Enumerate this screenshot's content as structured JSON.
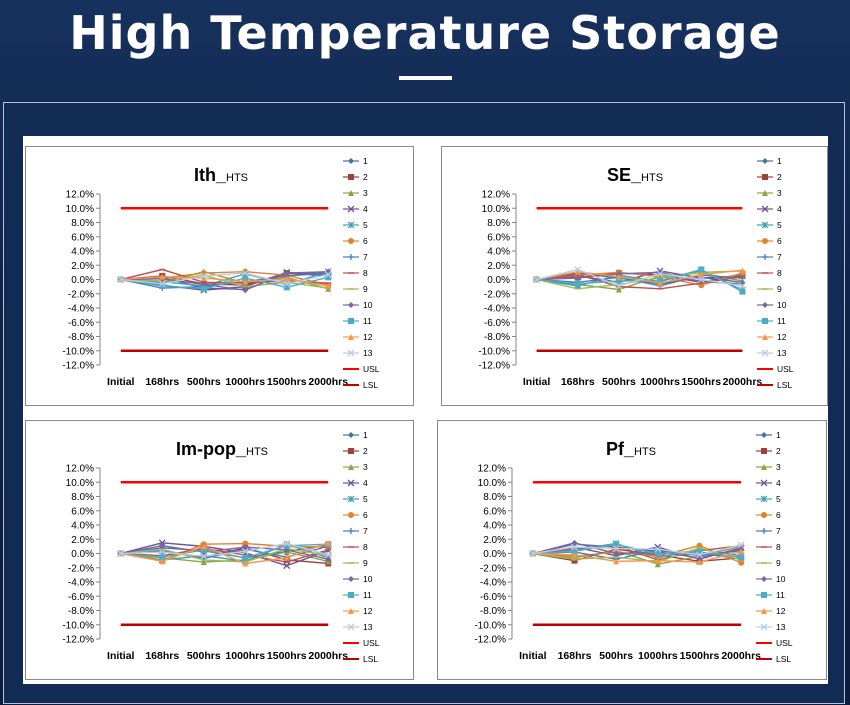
{
  "slide": {
    "title": "High Temperature Storage"
  },
  "legend": {
    "entries": [
      "1",
      "2",
      "3",
      "4",
      "5",
      "6",
      "7",
      "8",
      "9",
      "10",
      "11",
      "12",
      "13",
      "USL",
      "LSL"
    ],
    "colors": [
      "#4472a8",
      "#a0403b",
      "#8aa545",
      "#6d5396",
      "#3f9fb3",
      "#e0832f",
      "#4a7cbf",
      "#c0504d",
      "#9bbb59",
      "#8064a2",
      "#4bacc6",
      "#f79646",
      "#b8cce4",
      "#ff0000",
      "#c00000"
    ],
    "markers": [
      "diamond",
      "square",
      "triangle",
      "x",
      "star",
      "circle",
      "plus",
      "dash",
      "dash",
      "diamond",
      "square",
      "triangle",
      "x",
      "none",
      "none"
    ]
  },
  "chart_data": [
    {
      "type": "line",
      "title": "Ith_",
      "title_sub": "HTS",
      "categories": [
        "Initial",
        "168hrs",
        "500hrs",
        "1000hrs",
        "1500hrs",
        "2000hrs"
      ],
      "yticks": [
        "12.0%",
        "10.0%",
        "8.0%",
        "6.0%",
        "4.0%",
        "2.0%",
        "0.0%",
        "-2.0%",
        "-4.0%",
        "-6.0%",
        "-8.0%",
        "-10.0%",
        "-12.0%"
      ],
      "ylim": [
        -12,
        12
      ],
      "series": [
        {
          "name": "1",
          "values": [
            0,
            0.3,
            -1.2,
            -1.4,
            0.8,
            1.0
          ]
        },
        {
          "name": "2",
          "values": [
            0,
            0.5,
            -0.6,
            -0.8,
            0.9,
            0.5
          ]
        },
        {
          "name": "3",
          "values": [
            0,
            -0.5,
            1.1,
            -0.5,
            0.3,
            -1.3
          ]
        },
        {
          "name": "4",
          "values": [
            0,
            -0.8,
            -1.5,
            -1.0,
            1.0,
            0.6
          ]
        },
        {
          "name": "5",
          "values": [
            0,
            -0.3,
            -0.9,
            0.8,
            -0.7,
            1.1
          ]
        },
        {
          "name": "6",
          "values": [
            0,
            0.2,
            0.9,
            1.1,
            0.6,
            -0.8
          ]
        },
        {
          "name": "7",
          "values": [
            0,
            -1.2,
            -1.0,
            -0.3,
            0.5,
            0.9
          ]
        },
        {
          "name": "8",
          "values": [
            0,
            1.4,
            -0.4,
            -0.5,
            -0.2,
            -0.5
          ]
        },
        {
          "name": "9",
          "values": [
            0,
            -0.2,
            0.6,
            -1.0,
            -0.4,
            -1.2
          ]
        },
        {
          "name": "10",
          "values": [
            0,
            0.1,
            -0.7,
            -1.5,
            0.9,
            1.1
          ]
        },
        {
          "name": "11",
          "values": [
            0,
            -0.9,
            -1.3,
            0.2,
            -1.1,
            0.3
          ]
        },
        {
          "name": "12",
          "values": [
            0,
            0.4,
            0.2,
            -0.3,
            0.1,
            -0.9
          ]
        },
        {
          "name": "13",
          "values": [
            0,
            -0.6,
            0.5,
            0.9,
            -0.6,
            0.7
          ]
        },
        {
          "name": "USL",
          "values": [
            10,
            10,
            10,
            10,
            10,
            10
          ]
        },
        {
          "name": "LSL",
          "values": [
            -10,
            -10,
            -10,
            -10,
            -10,
            -10
          ]
        }
      ]
    },
    {
      "type": "line",
      "title": "SE_",
      "title_sub": "HTS",
      "categories": [
        "Initial",
        "168hrs",
        "500hrs",
        "1000hrs",
        "1500hrs",
        "2000hrs"
      ],
      "yticks": [
        "12.0%",
        "10.0%",
        "8.0%",
        "6.0%",
        "4.0%",
        "2.0%",
        "0.0%",
        "-2.0%",
        "-4.0%",
        "-6.0%",
        "-8.0%",
        "-10.0%",
        "-12.0%"
      ],
      "ylim": [
        -12,
        12
      ],
      "series": [
        {
          "name": "1",
          "values": [
            0,
            0.9,
            0.2,
            -0.6,
            0.3,
            -0.4
          ]
        },
        {
          "name": "2",
          "values": [
            0,
            0.3,
            0.9,
            0.6,
            -0.4,
            0.8
          ]
        },
        {
          "name": "3",
          "values": [
            0,
            -0.7,
            -1.4,
            0.5,
            0.9,
            -0.2
          ]
        },
        {
          "name": "4",
          "values": [
            0,
            0.5,
            -0.4,
            1.2,
            0.2,
            0.5
          ]
        },
        {
          "name": "5",
          "values": [
            0,
            -0.9,
            0.6,
            -0.3,
            1.3,
            -1.5
          ]
        },
        {
          "name": "6",
          "values": [
            0,
            0.6,
            1.0,
            0.4,
            -0.8,
            0.9
          ]
        },
        {
          "name": "7",
          "values": [
            0,
            -0.4,
            0.3,
            -0.9,
            0.6,
            0.2
          ]
        },
        {
          "name": "8",
          "values": [
            0,
            0.7,
            -1.0,
            -1.3,
            -0.5,
            0.4
          ]
        },
        {
          "name": "9",
          "values": [
            0,
            -1.3,
            -0.7,
            0.2,
            1.0,
            1.2
          ]
        },
        {
          "name": "10",
          "values": [
            0,
            0.2,
            0.8,
            1.0,
            -0.3,
            -0.6
          ]
        },
        {
          "name": "11",
          "values": [
            0,
            -0.6,
            -0.2,
            -0.2,
            1.4,
            -1.7
          ]
        },
        {
          "name": "12",
          "values": [
            0,
            1.1,
            0.4,
            -0.5,
            0.7,
            1.3
          ]
        },
        {
          "name": "13",
          "values": [
            0,
            1.4,
            -0.9,
            0.8,
            0.0,
            -0.9
          ]
        },
        {
          "name": "USL",
          "values": [
            10,
            10,
            10,
            10,
            10,
            10
          ]
        },
        {
          "name": "LSL",
          "values": [
            -10,
            -10,
            -10,
            -10,
            -10,
            -10
          ]
        }
      ]
    },
    {
      "type": "line",
      "title": "Im-pop_",
      "title_sub": "HTS",
      "categories": [
        "Initial",
        "168hrs",
        "500hrs",
        "1000hrs",
        "1500hrs",
        "2000hrs"
      ],
      "yticks": [
        "12.0%",
        "10.0%",
        "8.0%",
        "6.0%",
        "4.0%",
        "2.0%",
        "0.0%",
        "-2.0%",
        "-4.0%",
        "-6.0%",
        "-8.0%",
        "-10.0%",
        "-12.0%"
      ],
      "ylim": [
        -12,
        12
      ],
      "series": [
        {
          "name": "1",
          "values": [
            0,
            0.8,
            0.4,
            -0.6,
            0.3,
            1.2
          ]
        },
        {
          "name": "2",
          "values": [
            0,
            0.3,
            -0.5,
            0.8,
            -0.9,
            -1.4
          ]
        },
        {
          "name": "3",
          "values": [
            0,
            -0.6,
            -1.2,
            -0.9,
            0.2,
            -1.1
          ]
        },
        {
          "name": "4",
          "values": [
            0,
            1.5,
            1.0,
            0.1,
            -1.7,
            0.4
          ]
        },
        {
          "name": "5",
          "values": [
            0,
            -0.9,
            -0.3,
            -1.1,
            1.3,
            -0.6
          ]
        },
        {
          "name": "6",
          "values": [
            0,
            -1.0,
            1.3,
            1.4,
            1.0,
            0.9
          ]
        },
        {
          "name": "7",
          "values": [
            0,
            0.4,
            -0.7,
            0.6,
            -0.5,
            1.0
          ]
        },
        {
          "name": "8",
          "values": [
            0,
            -0.3,
            0.7,
            -0.2,
            -1.2,
            0.5
          ]
        },
        {
          "name": "9",
          "values": [
            0,
            0.6,
            -0.9,
            -1.2,
            0.7,
            -0.3
          ]
        },
        {
          "name": "10",
          "values": [
            0,
            1.1,
            0.2,
            0.9,
            0.5,
            -0.8
          ]
        },
        {
          "name": "11",
          "values": [
            0,
            -0.5,
            0.5,
            -0.6,
            1.1,
            1.3
          ]
        },
        {
          "name": "12",
          "values": [
            0,
            -1.1,
            1.0,
            -1.4,
            -0.6,
            1.5
          ]
        },
        {
          "name": "13",
          "values": [
            0,
            0.2,
            -0.4,
            0.3,
            1.4,
            -0.2
          ]
        },
        {
          "name": "USL",
          "values": [
            10,
            10,
            10,
            10,
            10,
            10
          ]
        },
        {
          "name": "LSL",
          "values": [
            -10,
            -10,
            -10,
            -10,
            -10,
            -10
          ]
        }
      ]
    },
    {
      "type": "line",
      "title": "Pf_",
      "title_sub": "HTS",
      "categories": [
        "Initial",
        "168hrs",
        "500hrs",
        "1000hrs",
        "1500hrs",
        "2000hrs"
      ],
      "yticks": [
        "12.0%",
        "10.0%",
        "8.0%",
        "6.0%",
        "4.0%",
        "2.0%",
        "0.0%",
        "-2.0%",
        "-4.0%",
        "-6.0%",
        "-8.0%",
        "-10.0%",
        "-12.0%"
      ],
      "ylim": [
        -12,
        12
      ],
      "series": [
        {
          "name": "1",
          "values": [
            0,
            1.3,
            0.9,
            0.3,
            0.1,
            -0.8
          ]
        },
        {
          "name": "2",
          "values": [
            0,
            -1.0,
            0.6,
            -0.2,
            -1.1,
            -0.6
          ]
        },
        {
          "name": "3",
          "values": [
            0,
            -0.6,
            0.4,
            -1.5,
            -0.4,
            1.0
          ]
        },
        {
          "name": "4",
          "values": [
            0,
            0.9,
            -0.3,
            0.9,
            -0.8,
            0.8
          ]
        },
        {
          "name": "5",
          "values": [
            0,
            0.5,
            1.4,
            -0.6,
            0.6,
            -0.3
          ]
        },
        {
          "name": "6",
          "values": [
            0,
            -0.4,
            0.2,
            -0.4,
            1.1,
            -1.3
          ]
        },
        {
          "name": "7",
          "values": [
            0,
            0.2,
            -0.8,
            0.5,
            -0.3,
            0.4
          ]
        },
        {
          "name": "8",
          "values": [
            0,
            0.7,
            1.1,
            -0.9,
            0.4,
            1.1
          ]
        },
        {
          "name": "9",
          "values": [
            0,
            -0.8,
            -0.5,
            -1.2,
            0.8,
            -0.9
          ]
        },
        {
          "name": "10",
          "values": [
            0,
            1.5,
            0.0,
            0.2,
            -0.6,
            0.6
          ]
        },
        {
          "name": "11",
          "values": [
            0,
            0.3,
            1.3,
            -0.1,
            0.2,
            -0.5
          ]
        },
        {
          "name": "12",
          "values": [
            0,
            -0.2,
            -1.1,
            -1.0,
            -1.2,
            0.3
          ]
        },
        {
          "name": "13",
          "values": [
            0,
            0.9,
            0.7,
            0.6,
            -0.2,
            1.2
          ]
        },
        {
          "name": "USL",
          "values": [
            10,
            10,
            10,
            10,
            10,
            10
          ]
        },
        {
          "name": "LSL",
          "values": [
            -10,
            -10,
            -10,
            -10,
            -10,
            -10
          ]
        }
      ]
    }
  ]
}
